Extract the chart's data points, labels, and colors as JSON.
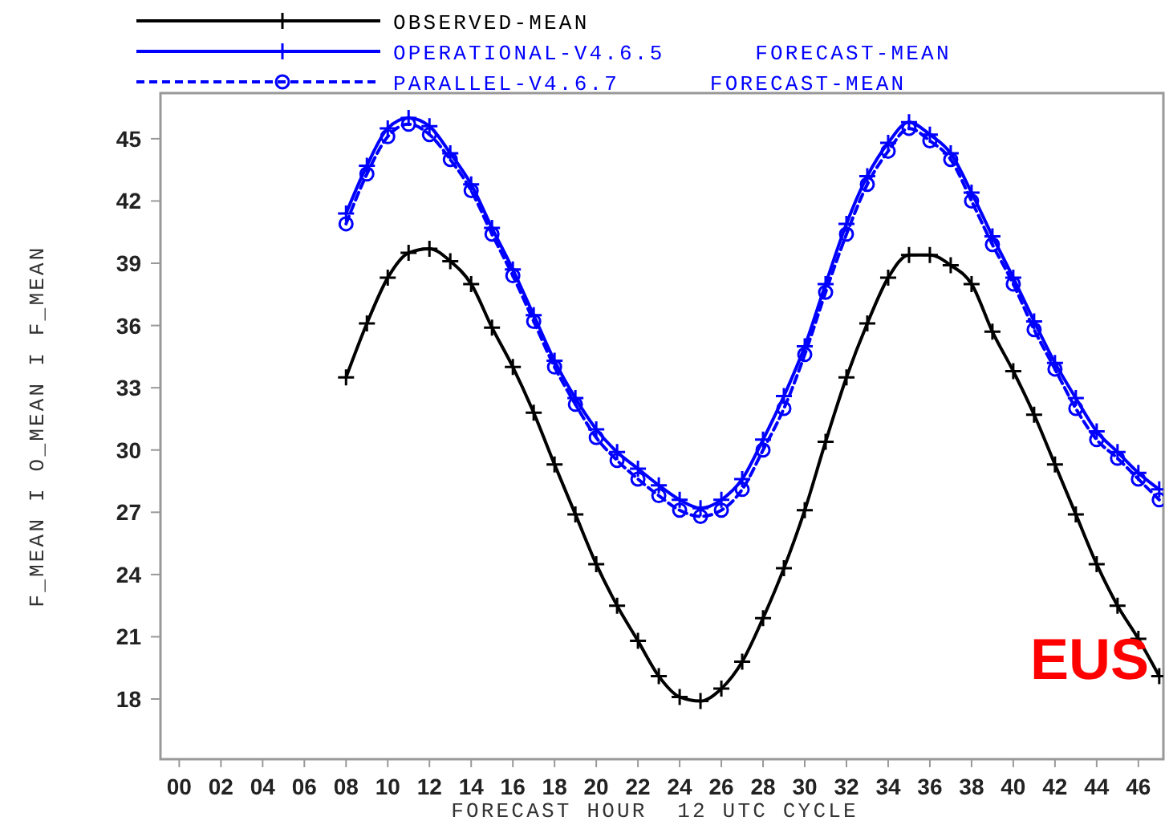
{
  "chart_data": {
    "type": "line",
    "xlabel": "FORECAST HOUR  12 UTC CYCLE",
    "ylabel": "F_MEAN I O_MEAN I F_MEAN",
    "x": [
      8,
      9,
      10,
      11,
      12,
      13,
      14,
      15,
      16,
      17,
      18,
      19,
      20,
      21,
      22,
      23,
      24,
      25,
      26,
      27,
      28,
      29,
      30,
      31,
      32,
      33,
      34,
      35,
      36,
      37,
      38,
      39,
      40,
      41,
      42,
      43,
      44,
      45,
      46,
      47
    ],
    "series": [
      {
        "name": "OBSERVED-MEAN",
        "color": "#000000",
        "marker": "cross",
        "line_style": "solid",
        "values": [
          33.5,
          36.1,
          38.3,
          39.5,
          39.7,
          39.1,
          38.0,
          35.9,
          34.0,
          31.8,
          29.3,
          26.9,
          24.5,
          22.5,
          20.8,
          19.1,
          18.1,
          17.9,
          18.5,
          19.8,
          21.9,
          24.3,
          27.1,
          30.4,
          33.5,
          36.1,
          38.3,
          39.4,
          39.4,
          38.9,
          38.0,
          35.7,
          33.8,
          31.7,
          29.3,
          26.9,
          24.5,
          22.5,
          20.9,
          19.1
        ]
      },
      {
        "name": "OPERATIONAL-V4.6.5      FORECAST-MEAN",
        "color": "#0000ff",
        "marker": "cross",
        "line_style": "solid",
        "values": [
          41.4,
          43.7,
          45.5,
          46.0,
          45.6,
          44.3,
          42.8,
          40.7,
          38.7,
          36.5,
          34.3,
          32.5,
          31.0,
          29.9,
          29.1,
          28.3,
          27.6,
          27.2,
          27.6,
          28.6,
          30.5,
          32.6,
          35.0,
          38.0,
          40.9,
          43.2,
          44.8,
          45.8,
          45.2,
          44.3,
          42.4,
          40.3,
          38.3,
          36.2,
          34.2,
          32.5,
          30.9,
          29.9,
          28.9,
          28.1
        ]
      },
      {
        "name": "PARALLEL-V4.6.7      FORECAST-MEAN",
        "color": "#0000ff",
        "marker": "circle",
        "line_style": "dashed",
        "values": [
          40.9,
          43.3,
          45.1,
          45.7,
          45.2,
          44.0,
          42.5,
          40.4,
          38.4,
          36.2,
          34.0,
          32.2,
          30.6,
          29.5,
          28.6,
          27.8,
          27.1,
          26.8,
          27.1,
          28.1,
          30.0,
          32.0,
          34.6,
          37.6,
          40.4,
          42.8,
          44.4,
          45.5,
          44.9,
          44.0,
          42.0,
          39.9,
          38.0,
          35.8,
          33.9,
          32.0,
          30.5,
          29.6,
          28.6,
          27.6
        ]
      }
    ],
    "xlim": [
      -0.9,
      47.2
    ],
    "ylim": [
      15.1,
      47.2
    ],
    "xticks": [
      {
        "value": 0,
        "label": "00"
      },
      {
        "value": 2,
        "label": "02"
      },
      {
        "value": 4,
        "label": "04"
      },
      {
        "value": 6,
        "label": "06"
      },
      {
        "value": 8,
        "label": "08"
      },
      10,
      12,
      14,
      16,
      18,
      20,
      22,
      24,
      26,
      28,
      30,
      32,
      34,
      36,
      38,
      40,
      42,
      44,
      46
    ],
    "yticks": [
      18,
      21,
      24,
      27,
      30,
      33,
      36,
      39,
      42,
      45
    ],
    "legend": "top",
    "grid": false,
    "annotations": [
      "EUS"
    ]
  }
}
